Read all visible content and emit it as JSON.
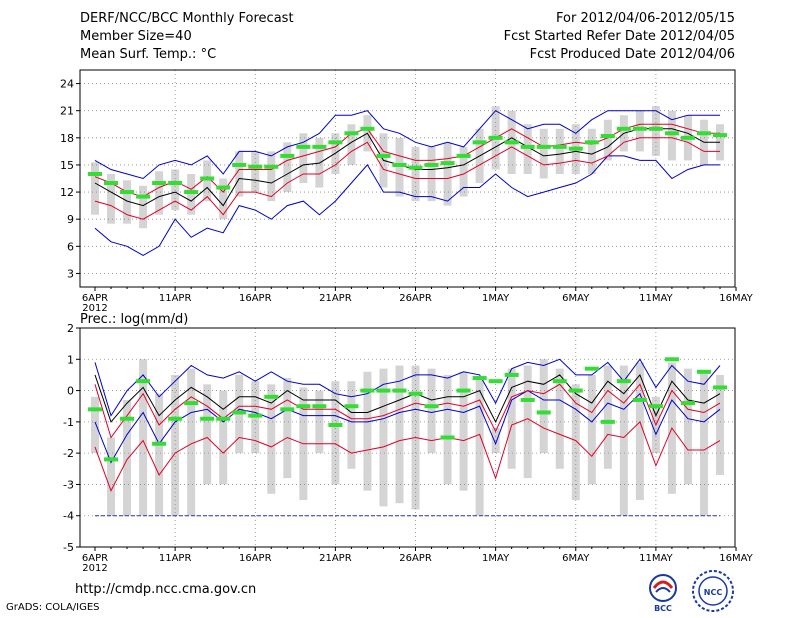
{
  "header": {
    "title": "DERF/NCC/BCC Monthly Forecast",
    "member_size": "Member Size=40",
    "variable": "Mean Surf. Temp.: °C",
    "forecast_period": "For 2012/04/06-2012/05/15",
    "refer_date": "Fcst Started Refer Date 2012/04/05",
    "produced_date": "Fcst Produced Date 2012/04/06"
  },
  "footer": {
    "url": "http://cmdp.ncc.cma.gov.cn",
    "grads": "GrADS: COLA/IGES",
    "logo_bcc": "BCC",
    "logo_ncc": "NCC"
  },
  "colors": {
    "box": "#d4d4d4",
    "obs": "#33dd33",
    "mean": "#000000",
    "spread": "#e0002a",
    "extreme": "#0000cc",
    "grid": "#888888"
  },
  "chart_data": [
    {
      "type": "line",
      "name": "temperature",
      "title": "Mean Surf. Temp.: °C",
      "x_tick_labels": [
        "6APR",
        "11APR",
        "16APR",
        "21APR",
        "26APR",
        "1MAY",
        "6MAY",
        "11MAY",
        "16MAY"
      ],
      "x_year_label": "2012",
      "y_ticks": [
        "24",
        "21",
        "18",
        "15",
        "12",
        "9",
        "6",
        "3"
      ],
      "ylim": [
        1.5,
        25.5
      ],
      "days": 40,
      "mean": [
        13.0,
        12.0,
        11.0,
        10.5,
        11.5,
        12.0,
        11.0,
        12.5,
        10.5,
        13.5,
        13.3,
        13.0,
        14.0,
        15.0,
        15.2,
        16.3,
        17.5,
        18.5,
        15.5,
        15.0,
        14.5,
        14.5,
        14.7,
        15.0,
        16.0,
        17.0,
        18.0,
        17.0,
        16.0,
        16.2,
        16.5,
        16.2,
        17.0,
        18.5,
        19.0,
        19.0,
        19.0,
        18.5,
        17.5,
        17.5
      ],
      "upper": [
        13.7,
        13.0,
        12.0,
        11.5,
        12.5,
        13.2,
        12.3,
        13.7,
        12.0,
        14.5,
        14.5,
        14.5,
        15.5,
        16.0,
        16.5,
        17.0,
        18.5,
        19.0,
        16.5,
        16.0,
        15.5,
        15.5,
        15.7,
        16.0,
        17.0,
        18.0,
        19.0,
        18.0,
        17.0,
        17.2,
        17.5,
        17.3,
        18.0,
        19.0,
        19.5,
        19.5,
        19.5,
        19.0,
        18.5,
        18.5
      ],
      "lower": [
        11.0,
        10.5,
        9.5,
        9.0,
        10.0,
        11.0,
        10.0,
        11.5,
        9.5,
        12.0,
        12.0,
        11.5,
        13.0,
        14.0,
        14.0,
        15.0,
        16.5,
        17.5,
        14.5,
        14.0,
        13.5,
        13.5,
        13.5,
        14.0,
        15.0,
        16.0,
        17.0,
        16.0,
        15.0,
        15.2,
        15.5,
        15.2,
        16.0,
        17.5,
        18.0,
        18.0,
        18.0,
        17.5,
        16.5,
        16.5
      ],
      "max": [
        15.5,
        14.5,
        14.0,
        13.5,
        15.0,
        15.5,
        15.0,
        16.0,
        14.0,
        16.5,
        16.5,
        16.0,
        17.0,
        17.5,
        18.5,
        20.5,
        20.5,
        21.0,
        19.0,
        18.5,
        17.5,
        17.0,
        17.5,
        17.0,
        19.0,
        21.0,
        20.0,
        19.0,
        19.5,
        19.5,
        18.5,
        20.0,
        21.0,
        21.0,
        21.0,
        21.0,
        20.0,
        20.5,
        20.5,
        20.5
      ],
      "min": [
        8.0,
        6.5,
        6.0,
        5.0,
        6.0,
        9.0,
        7.0,
        8.0,
        7.5,
        10.5,
        10.0,
        9.0,
        10.5,
        11.0,
        9.5,
        11.0,
        13.0,
        15.0,
        12.0,
        12.0,
        11.5,
        11.5,
        11.0,
        12.5,
        12.5,
        14.0,
        12.5,
        11.5,
        12.0,
        12.5,
        13.0,
        14.0,
        16.0,
        16.0,
        15.5,
        15.5,
        13.5,
        14.5,
        15.0,
        15.0
      ],
      "box_top": [
        15.3,
        14.0,
        13.3,
        12.7,
        14.3,
        14.5,
        14.0,
        15.5,
        13.5,
        16.5,
        16.5,
        16.5,
        17.5,
        18.5,
        18.0,
        18.5,
        19.5,
        20.5,
        18.5,
        18.0,
        17.0,
        17.0,
        17.5,
        17.0,
        19.0,
        21.5,
        21.0,
        19.5,
        19.0,
        19.0,
        19.5,
        19.0,
        20.0,
        20.5,
        21.0,
        21.5,
        21.0,
        20.5,
        20.0,
        19.5
      ],
      "box_bot": [
        9.5,
        8.5,
        8.5,
        8.0,
        9.5,
        10.0,
        9.5,
        11.0,
        9.0,
        11.5,
        12.0,
        11.0,
        12.0,
        13.0,
        12.5,
        14.0,
        15.0,
        16.5,
        12.5,
        11.5,
        11.0,
        11.0,
        10.5,
        11.5,
        13.0,
        14.5,
        14.0,
        14.0,
        13.5,
        14.0,
        14.0,
        14.0,
        15.5,
        16.5,
        16.5,
        16.0,
        15.5,
        15.5,
        15.0,
        15.5
      ],
      "obs": [
        14.0,
        13.0,
        12.0,
        11.5,
        13.0,
        13.0,
        12.0,
        13.5,
        12.5,
        15.0,
        14.8,
        14.8,
        16.0,
        17.0,
        17.0,
        17.5,
        18.5,
        19.0,
        16.0,
        15.0,
        14.7,
        15.0,
        15.2,
        16.0,
        17.5,
        18.0,
        17.5,
        17.0,
        17.0,
        17.0,
        16.8,
        17.5,
        18.2,
        19.0,
        19.0,
        19.0,
        18.5,
        18.0,
        18.5,
        18.3
      ]
    },
    {
      "type": "line",
      "name": "precipitation",
      "title": "Prec.: log(mm/d)",
      "x_tick_labels": [
        "6APR",
        "11APR",
        "16APR",
        "21APR",
        "26APR",
        "1MAY",
        "6MAY",
        "11MAY",
        "16MAY"
      ],
      "x_year_label": "2012",
      "y_ticks": [
        "2",
        "1",
        "0",
        "-1",
        "-2",
        "-3",
        "-4",
        "-5"
      ],
      "ylim": [
        -5,
        2
      ],
      "floor_value": -4,
      "days": 40,
      "mean": [
        0.5,
        -1.0,
        -0.4,
        0.1,
        -0.8,
        -0.3,
        0.1,
        -0.2,
        -0.6,
        -0.2,
        -0.2,
        -0.4,
        0.0,
        -0.3,
        -0.3,
        -0.3,
        -0.7,
        -0.7,
        -0.5,
        -0.3,
        -0.1,
        -0.3,
        -0.2,
        -0.2,
        0.0,
        -1.0,
        0.1,
        0.3,
        0.2,
        0.5,
        -0.1,
        -0.4,
        0.3,
        -0.1,
        0.5,
        -0.8,
        0.3,
        -0.3,
        -0.4,
        -0.1
      ],
      "upper": [
        0.2,
        -1.5,
        -0.8,
        -0.1,
        -1.1,
        -0.6,
        -0.2,
        -0.5,
        -0.9,
        -0.5,
        -0.5,
        -0.6,
        -0.3,
        -0.6,
        -0.6,
        -0.6,
        -0.9,
        -0.9,
        -0.8,
        -0.6,
        -0.4,
        -0.5,
        -0.4,
        -0.5,
        -0.3,
        -1.3,
        -0.2,
        0.0,
        -0.1,
        0.2,
        -0.4,
        -0.7,
        0.0,
        -0.4,
        0.2,
        -1.1,
        0.0,
        -0.6,
        -0.7,
        -0.4
      ],
      "lower": [
        -1.8,
        -3.2,
        -2.2,
        -1.6,
        -2.7,
        -2.0,
        -1.7,
        -1.5,
        -2.0,
        -1.5,
        -1.6,
        -1.8,
        -1.5,
        -1.7,
        -1.7,
        -1.7,
        -2.0,
        -1.9,
        -1.8,
        -1.6,
        -1.5,
        -1.6,
        -1.5,
        -1.6,
        -1.4,
        -2.8,
        -1.1,
        -0.9,
        -1.2,
        -1.4,
        -1.6,
        -2.1,
        -1.4,
        -1.5,
        -1.0,
        -2.4,
        -1.2,
        -1.9,
        -1.9,
        -1.6
      ],
      "max": [
        0.9,
        -0.8,
        0.0,
        0.5,
        -0.2,
        0.3,
        0.8,
        0.5,
        0.4,
        0.6,
        0.3,
        0.6,
        0.3,
        0.2,
        0.2,
        -0.1,
        -0.2,
        -0.1,
        0.2,
        0.3,
        0.5,
        0.5,
        0.4,
        0.6,
        0.5,
        -0.4,
        0.7,
        0.9,
        0.8,
        1.0,
        0.5,
        0.5,
        0.9,
        0.3,
        1.0,
        0.1,
        0.8,
        0.3,
        0.2,
        0.8
      ],
      "min": [
        -1.0,
        -2.3,
        -1.4,
        -0.7,
        -1.7,
        -1.0,
        -0.7,
        -0.6,
        -1.0,
        -0.6,
        -0.7,
        -0.9,
        -0.6,
        -0.8,
        -0.8,
        -0.8,
        -1.0,
        -1.0,
        -0.9,
        -0.7,
        -0.6,
        -0.7,
        -0.6,
        -0.7,
        -0.5,
        -1.7,
        -0.3,
        0.0,
        -0.3,
        -0.3,
        -0.6,
        -1.0,
        -0.4,
        -0.6,
        -0.1,
        -1.4,
        -0.3,
        -0.9,
        -1.0,
        -0.6
      ],
      "box_top": [
        -0.2,
        -1.5,
        -0.3,
        1.0,
        -0.1,
        0.5,
        0.7,
        0.2,
        0.0,
        0.5,
        0.3,
        0.2,
        0.4,
        0.1,
        0.0,
        0.3,
        0.3,
        0.6,
        0.7,
        0.8,
        0.8,
        0.7,
        0.5,
        0.6,
        0.4,
        -1.2,
        0.7,
        0.8,
        1.0,
        0.7,
        0.2,
        0.5,
        0.8,
        0.8,
        0.9,
        -0.2,
        0.9,
        0.7,
        0.6,
        0.5
      ],
      "box_bot": [
        -2.0,
        -4.0,
        -4.0,
        -4.0,
        -4.0,
        -4.0,
        -4.0,
        -3.0,
        -3.0,
        -2.0,
        -2.0,
        -3.3,
        -2.8,
        -3.5,
        -2.0,
        -3.0,
        -2.5,
        -3.2,
        -3.7,
        -3.6,
        -3.8,
        -2.0,
        -3.0,
        -3.2,
        -4.0,
        -2.0,
        -2.5,
        -2.8,
        -2.0,
        -2.5,
        -3.5,
        -3.0,
        -2.5,
        -4.0,
        -3.5,
        -2.0,
        -3.3,
        -3.0,
        -4.0,
        -2.7
      ],
      "obs": [
        -0.6,
        -2.2,
        -0.9,
        0.3,
        -1.7,
        -0.9,
        -0.4,
        -0.9,
        -0.9,
        -0.7,
        -0.8,
        -0.2,
        -0.6,
        -0.5,
        -0.5,
        -1.1,
        -0.5,
        0.0,
        0.0,
        0.0,
        -0.1,
        -0.5,
        -1.5,
        0.0,
        0.4,
        0.3,
        0.5,
        -0.3,
        -0.7,
        0.3,
        0.0,
        0.7,
        -1.0,
        0.3,
        -0.3,
        -0.5,
        1.0,
        -0.4,
        0.6,
        0.1
      ]
    }
  ]
}
